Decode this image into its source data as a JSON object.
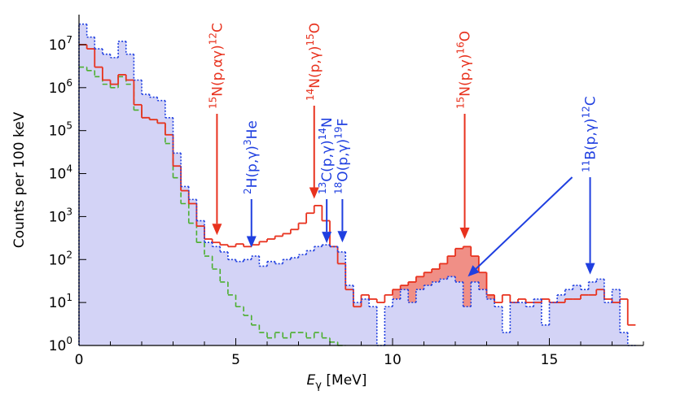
{
  "chart_data": {
    "type": "histogram",
    "ylabel": "Counts per 100 keV",
    "xlabel": [
      "E",
      "γ",
      " [MeV]"
    ],
    "log_y": true,
    "xlim": [
      0,
      18
    ],
    "xticks": [
      0,
      5,
      10,
      15
    ],
    "xminorticks": [
      1,
      2,
      3,
      4,
      6,
      7,
      8,
      9,
      11,
      12,
      13,
      14,
      16,
      17,
      18
    ],
    "ylim": [
      1,
      50000000
    ],
    "yticks": [
      {
        "value": 1,
        "label": [
          "10",
          "0"
        ]
      },
      {
        "value": 10,
        "label": [
          "10",
          "1"
        ]
      },
      {
        "value": 100,
        "label": [
          "10",
          "2"
        ]
      },
      {
        "value": 1000,
        "label": [
          "10",
          "3"
        ]
      },
      {
        "value": 10000,
        "label": [
          "10",
          "4"
        ]
      },
      {
        "value": 100000,
        "label": [
          "10",
          "5"
        ]
      },
      {
        "value": 1000000,
        "label": [
          "10",
          "6"
        ]
      },
      {
        "value": 10000000,
        "label": [
          "10",
          "7"
        ]
      }
    ],
    "bins": [
      0,
      0.25,
      0.5,
      0.75,
      1,
      1.25,
      1.5,
      1.75,
      2,
      2.25,
      2.5,
      2.75,
      3,
      3.25,
      3.5,
      3.75,
      4,
      4.25,
      4.5,
      4.75,
      5,
      5.25,
      5.5,
      5.75,
      6,
      6.25,
      6.5,
      6.75,
      7,
      7.25,
      7.5,
      7.75,
      8,
      8.25,
      8.5,
      8.75,
      9,
      9.25,
      9.5,
      9.75,
      10,
      10.25,
      10.5,
      10.75,
      11,
      11.25,
      11.5,
      11.75,
      12,
      12.25,
      12.5,
      12.75,
      13,
      13.25,
      13.5,
      13.75,
      14,
      14.25,
      14.5,
      14.75,
      15,
      15.25,
      15.5,
      15.75,
      16,
      16.25,
      16.5,
      16.75,
      17,
      17.25,
      17.5,
      17.75
    ],
    "series": [
      {
        "color": "#1f3fe0",
        "style": "dotted",
        "fill": "#d3d3f6",
        "values": [
          30000000,
          15000000,
          8000000,
          6000000,
          5000000,
          12000000,
          6000000,
          1500000,
          700000,
          600000,
          500000,
          200000,
          30000,
          5000,
          2500,
          800,
          250,
          200,
          150,
          100,
          90,
          100,
          120,
          70,
          90,
          80,
          100,
          110,
          130,
          160,
          200,
          220,
          200,
          150,
          25,
          10,
          12,
          8,
          1,
          8,
          12,
          20,
          10,
          20,
          25,
          30,
          35,
          40,
          30,
          8,
          30,
          20,
          12,
          8,
          2,
          10,
          10,
          8,
          12,
          3,
          10,
          15,
          20,
          25,
          20,
          30,
          35,
          10,
          20,
          2,
          1
        ]
      },
      {
        "color": "#e8321e",
        "style": "solid",
        "fill": "#f08f86",
        "fill_range": [
          10,
          13.25
        ],
        "values": [
          10000000,
          8000000,
          3000000,
          1500000,
          1200000,
          2000000,
          1500000,
          400000,
          200000,
          180000,
          150000,
          80000,
          15000,
          4000,
          2000,
          600,
          300,
          250,
          220,
          200,
          230,
          200,
          220,
          260,
          300,
          350,
          400,
          500,
          700,
          1200,
          1800,
          800,
          200,
          80,
          20,
          8,
          15,
          12,
          10,
          15,
          20,
          25,
          30,
          40,
          50,
          60,
          80,
          120,
          180,
          200,
          120,
          50,
          15,
          10,
          15,
          10,
          12,
          10,
          10,
          12,
          10,
          10,
          12,
          12,
          15,
          15,
          20,
          12,
          10,
          12,
          3
        ]
      },
      {
        "color": "#4caf2f",
        "style": "dashed",
        "values": [
          3000000,
          2500000,
          1800000,
          1200000,
          1000000,
          1800000,
          1200000,
          300000,
          200000,
          180000,
          150000,
          50000,
          8000,
          2000,
          700,
          250,
          120,
          60,
          30,
          15,
          8,
          5,
          3,
          2,
          1.5,
          2,
          1.5,
          2,
          2,
          1.5,
          2,
          1.5,
          1.2,
          1,
          null,
          null,
          null,
          null,
          null,
          null,
          null,
          null,
          null,
          null,
          null,
          null,
          null,
          null,
          null,
          null,
          null,
          null,
          null,
          null,
          null,
          null,
          null,
          null,
          null,
          null,
          null,
          null,
          null,
          null,
          null,
          null,
          null,
          null,
          null,
          null,
          null
        ]
      }
    ],
    "annotations": [
      {
        "label": [
          "15",
          "N(p,αγ)",
          "12",
          "C"
        ],
        "color": "#e8321e",
        "tips": [
          [
            4.4,
            370
          ]
        ]
      },
      {
        "label": [
          "2",
          "H(p,γ)",
          "3",
          "He"
        ],
        "color": "#1f3fe0",
        "tips": [
          [
            5.5,
            190
          ]
        ]
      },
      {
        "label": [
          "14",
          "N(p,γ)",
          "15",
          "O"
        ],
        "color": "#e8321e",
        "tips": [
          [
            7.5,
            2600
          ]
        ]
      },
      {
        "label": [
          "13",
          "C(p,γ)",
          "14",
          "N"
        ],
        "color": "#1f3fe0",
        "tips": [
          [
            7.9,
            240
          ]
        ]
      },
      {
        "label": [
          "18",
          "O(p,γ)",
          "19",
          "F"
        ],
        "color": "#1f3fe0",
        "tips": [
          [
            8.4,
            250
          ]
        ]
      },
      {
        "label": [
          "15",
          "N(p,γ)",
          "16",
          "O"
        ],
        "color": "#e8321e",
        "tips": [
          [
            12.3,
            300
          ]
        ]
      },
      {
        "label": [
          "11",
          "B(p,γ)",
          "12",
          "C"
        ],
        "color": "#1f3fe0",
        "tips": [
          [
            16.3,
            45
          ],
          [
            12.4,
            40
          ]
        ]
      }
    ]
  }
}
